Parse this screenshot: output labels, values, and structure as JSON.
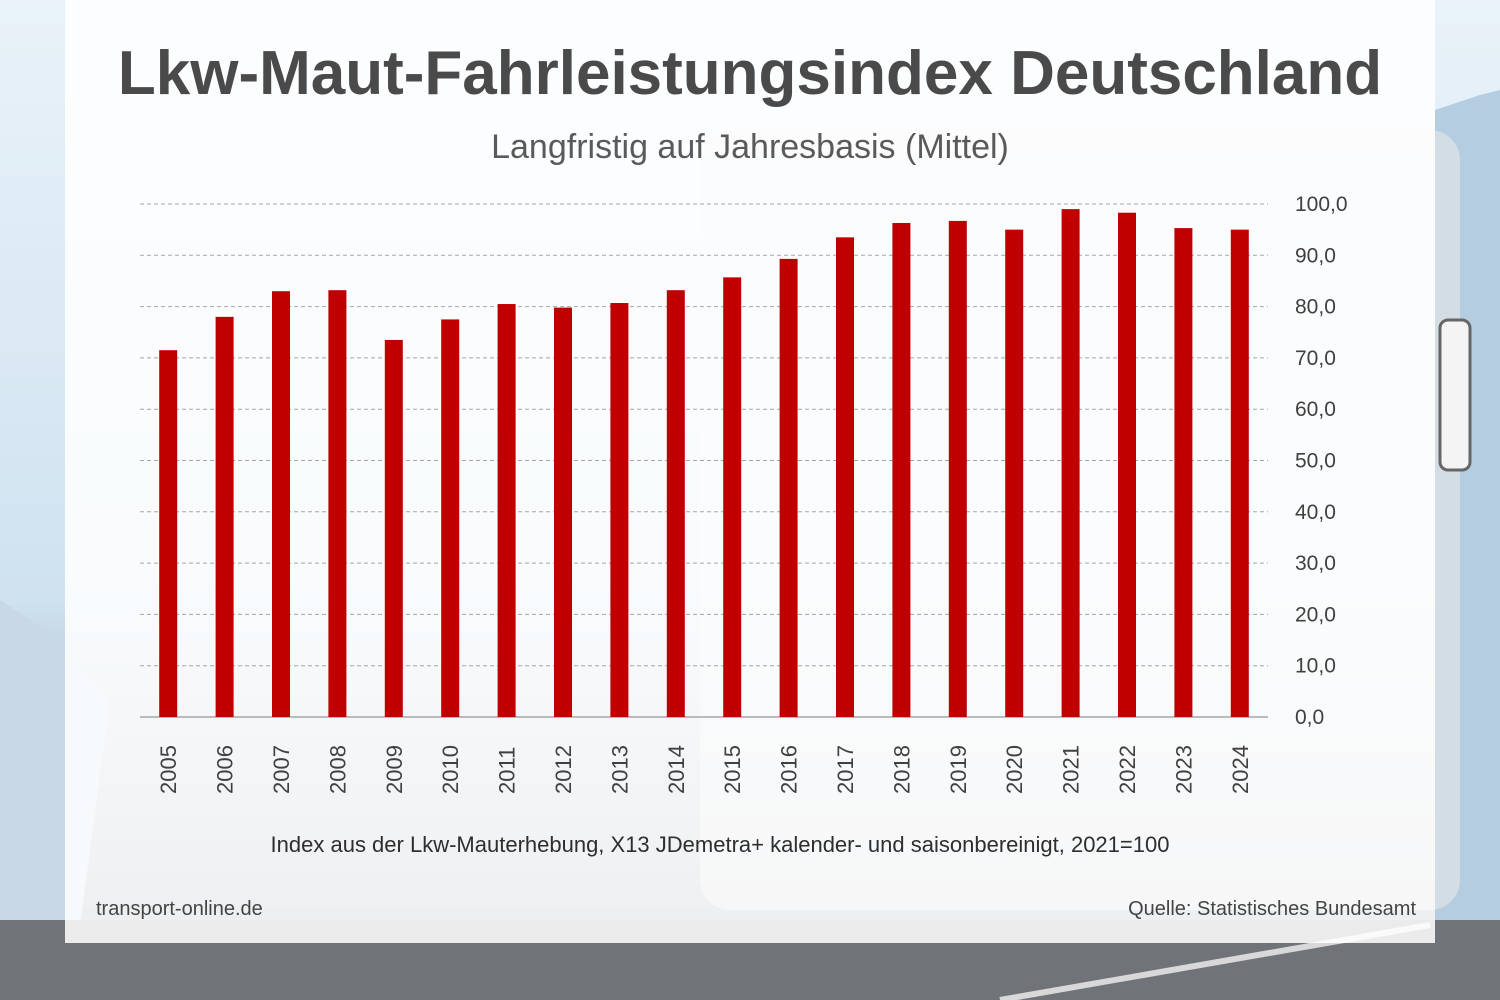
{
  "header": {
    "title": "Lkw-Maut-Fahrleistungsindex Deutschland",
    "subtitle": "Langfristig auf Jahresbasis (Mittel)"
  },
  "footer": {
    "note": "Index aus der Lkw-Mauterhebung, X13 JDemetra+ kalender- und saisonbereinigt, 2021=100",
    "site": "transport-online.de",
    "source": "Quelle: Statistisches Bundesamt"
  },
  "colors": {
    "bar": "#c00000",
    "grid": "#a6a6a6",
    "axis_text": "#404040"
  },
  "chart_data": {
    "type": "bar",
    "categories": [
      "2005",
      "2006",
      "2007",
      "2008",
      "2009",
      "2010",
      "2011",
      "2012",
      "2013",
      "2014",
      "2015",
      "2016",
      "2017",
      "2018",
      "2019",
      "2020",
      "2021",
      "2022",
      "2023",
      "2024"
    ],
    "values": [
      71.5,
      78.0,
      83.0,
      83.2,
      73.5,
      77.5,
      80.5,
      79.8,
      80.7,
      83.2,
      85.7,
      89.3,
      93.5,
      96.3,
      96.7,
      95.0,
      99.0,
      98.3,
      95.3,
      95.0
    ],
    "yticks": [
      "0,0",
      "10,0",
      "20,0",
      "30,0",
      "40,0",
      "50,0",
      "60,0",
      "70,0",
      "80,0",
      "90,0",
      "100,0"
    ],
    "ylim": [
      0,
      100
    ],
    "grid": true,
    "yaxis_side": "right",
    "xlabel": "",
    "ylabel": ""
  }
}
